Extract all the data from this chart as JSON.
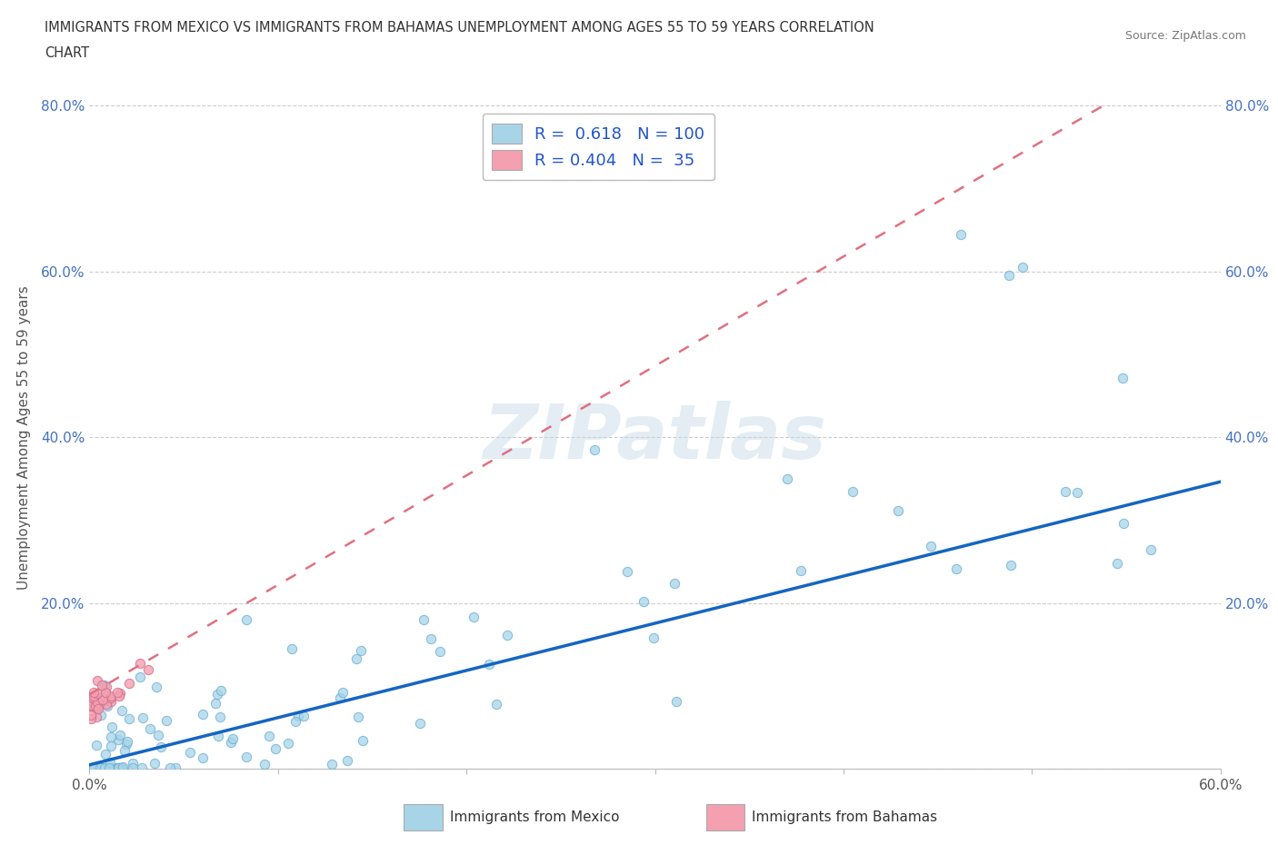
{
  "title_line1": "IMMIGRANTS FROM MEXICO VS IMMIGRANTS FROM BAHAMAS UNEMPLOYMENT AMONG AGES 55 TO 59 YEARS CORRELATION",
  "title_line2": "CHART",
  "source_text": "Source: ZipAtlas.com",
  "ylabel": "Unemployment Among Ages 55 to 59 years",
  "xlim": [
    0.0,
    0.6
  ],
  "ylim": [
    0.0,
    0.8
  ],
  "mexico_color": "#a8d4e8",
  "bahamas_color": "#f4a0b0",
  "mexico_R": 0.618,
  "mexico_N": 100,
  "bahamas_R": 0.404,
  "bahamas_N": 35,
  "trend_mexico_color": "#1565c0",
  "trend_bahamas_color": "#e07080",
  "watermark": "ZIPatlas",
  "background_color": "#ffffff"
}
